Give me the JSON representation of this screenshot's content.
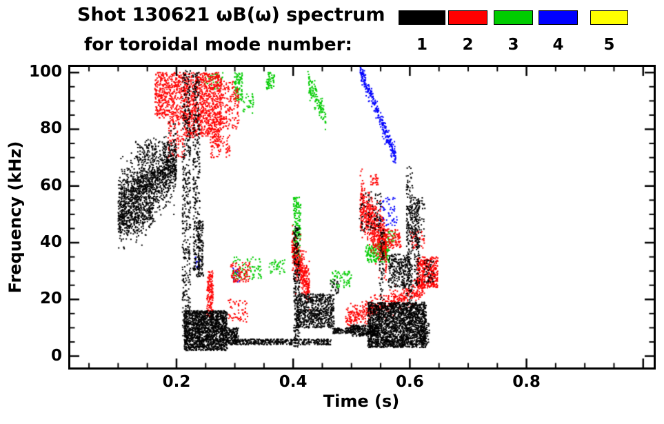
{
  "title": {
    "line1": "Shot 130621 ωB(ω) spectrum",
    "line2": "for toroidal mode number:"
  },
  "legend": {
    "position": "top-right",
    "items": [
      {
        "label": "1",
        "color": "#000000"
      },
      {
        "label": "2",
        "color": "#ff0000"
      },
      {
        "label": "3",
        "color": "#00cc00"
      },
      {
        "label": "4",
        "color": "#0000ff"
      },
      {
        "label": "5",
        "color": "#ffff00"
      }
    ]
  },
  "chart_data": {
    "type": "scatter",
    "title": "Shot 130621 ωB(ω) spectrum for toroidal mode number",
    "xlabel": "Time (s)",
    "ylabel": "Frequency (kHz)",
    "xlim": [
      0.0,
      1.0
    ],
    "ylim": [
      0,
      100
    ],
    "x_tick_values": [
      0.2,
      0.4,
      0.6,
      0.8
    ],
    "x_tick_labels": [
      "0.2",
      "0.4",
      "0.6",
      "0.8"
    ],
    "y_tick_values": [
      0,
      20,
      40,
      60,
      80,
      100
    ],
    "y_tick_labels": [
      "0",
      "20",
      "40",
      "60",
      "80",
      "100"
    ],
    "grid": false,
    "legend_position": "top-right",
    "series": [
      {
        "name": "n=1",
        "color": "#000000",
        "clusters": [
          {
            "k": "band",
            "t": [
              0.1,
              0.2
            ],
            "f": [
              52,
              69
            ],
            "s": 5.5,
            "n": 1500
          },
          {
            "k": "band",
            "t": [
              0.1,
              0.16
            ],
            "f": [
              45,
              50
            ],
            "s": 2.5,
            "n": 220
          },
          {
            "k": "blob",
            "t": [
              0.13,
              0.165
            ],
            "f": [
              69,
              76
            ],
            "n": 70
          },
          {
            "k": "v",
            "t": [
              0.21,
              0.224
            ],
            "f": [
              4,
              101
            ],
            "n": 420
          },
          {
            "k": "v",
            "t": [
              0.228,
              0.24
            ],
            "f": [
              28,
              100
            ],
            "n": 300
          },
          {
            "k": "v",
            "t": [
              0.236,
              0.246
            ],
            "f": [
              28,
              48
            ],
            "n": 120
          },
          {
            "k": "blob",
            "t": [
              0.213,
              0.287
            ],
            "f": [
              2,
              16
            ],
            "n": 1500
          },
          {
            "k": "blob",
            "t": [
              0.285,
              0.307
            ],
            "f": [
              4,
              10
            ],
            "n": 160
          },
          {
            "k": "blob",
            "t": [
              0.3,
              0.465
            ],
            "f": [
              4,
              6
            ],
            "n": 380
          },
          {
            "k": "blob",
            "t": [
              0.405,
              0.47
            ],
            "f": [
              10,
              22
            ],
            "n": 650
          },
          {
            "k": "v",
            "t": [
              0.401,
              0.411
            ],
            "f": [
              3,
              46
            ],
            "n": 220
          },
          {
            "k": "blob",
            "t": [
              0.528,
              0.628
            ],
            "f": [
              3,
              19
            ],
            "n": 2000
          },
          {
            "k": "blob",
            "t": [
              0.498,
              0.545
            ],
            "f": [
              7,
              11
            ],
            "n": 260
          },
          {
            "k": "blob",
            "t": [
              0.468,
              0.5
            ],
            "f": [
              8,
              10
            ],
            "n": 90
          },
          {
            "k": "v",
            "t": [
              0.594,
              0.605
            ],
            "f": [
              8,
              67
            ],
            "n": 220
          },
          {
            "k": "v",
            "t": [
              0.608,
              0.617
            ],
            "f": [
              25,
              55
            ],
            "n": 130
          },
          {
            "k": "v",
            "t": [
              0.548,
              0.556
            ],
            "f": [
              20,
              46
            ],
            "n": 70
          },
          {
            "k": "blob",
            "t": [
              0.563,
              0.602
            ],
            "f": [
              24,
              36
            ],
            "n": 260
          },
          {
            "k": "blob",
            "t": [
              0.513,
              0.552
            ],
            "f": [
              44,
              58
            ],
            "n": 90
          },
          {
            "k": "blob",
            "t": [
              0.598,
              0.626
            ],
            "f": [
              42,
              56
            ],
            "n": 85
          },
          {
            "k": "blob",
            "t": [
              0.624,
              0.642
            ],
            "f": [
              26,
              34
            ],
            "n": 45
          },
          {
            "k": "blob",
            "t": [
              0.618,
              0.634
            ],
            "f": [
              4,
              12
            ],
            "n": 70
          },
          {
            "k": "blob",
            "t": [
              0.463,
              0.478
            ],
            "f": [
              22,
              27
            ],
            "n": 25
          }
        ]
      },
      {
        "name": "n=2",
        "color": "#ff0000",
        "clusters": [
          {
            "k": "blob",
            "t": [
              0.163,
              0.215
            ],
            "f": [
              84,
              100
            ],
            "n": 480
          },
          {
            "k": "blob",
            "t": [
              0.213,
              0.277
            ],
            "f": [
              77,
              100
            ],
            "n": 950
          },
          {
            "k": "blob",
            "t": [
              0.275,
              0.307
            ],
            "f": [
              80,
              97
            ],
            "n": 160
          },
          {
            "k": "blob",
            "t": [
              0.258,
              0.292
            ],
            "f": [
              70,
              78
            ],
            "n": 90
          },
          {
            "k": "blob",
            "t": [
              0.185,
              0.215
            ],
            "f": [
              70,
              84
            ],
            "n": 120
          },
          {
            "k": "v",
            "t": [
              0.252,
              0.263
            ],
            "f": [
              14,
              30
            ],
            "n": 150
          },
          {
            "k": "blob",
            "t": [
              0.288,
              0.322
            ],
            "f": [
              12,
              20
            ],
            "n": 60
          },
          {
            "k": "blob",
            "t": [
              0.293,
              0.327
            ],
            "f": [
              26,
              33
            ],
            "n": 90
          },
          {
            "k": "band",
            "t": [
              0.398,
              0.428
            ],
            "f": [
              38,
              24
            ],
            "s": 3.5,
            "n": 380
          },
          {
            "k": "band",
            "t": [
              0.515,
              0.56
            ],
            "f": [
              54,
              38
            ],
            "s": 4.5,
            "n": 600
          },
          {
            "k": "blob",
            "t": [
              0.531,
              0.546
            ],
            "f": [
              60,
              64
            ],
            "n": 28
          },
          {
            "k": "band",
            "t": [
              0.49,
              0.625
            ],
            "f": [
              13,
              24
            ],
            "s": 1.8,
            "n": 480
          },
          {
            "k": "blob",
            "t": [
              0.612,
              0.648
            ],
            "f": [
              24,
              35
            ],
            "n": 380
          },
          {
            "k": "blob",
            "t": [
              0.553,
              0.585
            ],
            "f": [
              38,
              45
            ],
            "n": 110
          },
          {
            "k": "blob",
            "t": [
              0.6,
              0.625
            ],
            "f": [
              38,
              44
            ],
            "n": 40
          }
        ]
      },
      {
        "name": "n=3",
        "color": "#00cc00",
        "clusters": [
          {
            "k": "v",
            "t": [
              0.299,
              0.313
            ],
            "f": [
              90,
              100
            ],
            "n": 90
          },
          {
            "k": "blob",
            "t": [
              0.31,
              0.332
            ],
            "f": [
              85,
              93
            ],
            "n": 35
          },
          {
            "k": "blob",
            "t": [
              0.354,
              0.368
            ],
            "f": [
              94,
              100
            ],
            "n": 55
          },
          {
            "k": "band",
            "t": [
              0.425,
              0.456
            ],
            "f": [
              97,
              84
            ],
            "s": 2,
            "n": 130
          },
          {
            "k": "v",
            "t": [
              0.4,
              0.413
            ],
            "f": [
              33,
              56
            ],
            "n": 170
          },
          {
            "k": "blob",
            "t": [
              0.294,
              0.346
            ],
            "f": [
              27,
              35
            ],
            "n": 85
          },
          {
            "k": "blob",
            "t": [
              0.358,
              0.386
            ],
            "f": [
              29,
              34
            ],
            "n": 40
          },
          {
            "k": "blob",
            "t": [
              0.464,
              0.5
            ],
            "f": [
              24,
              30
            ],
            "n": 70
          },
          {
            "k": "blob",
            "t": [
              0.524,
              0.566
            ],
            "f": [
              33,
              40
            ],
            "n": 190
          },
          {
            "k": "blob",
            "t": [
              0.554,
              0.576
            ],
            "f": [
              40,
              44
            ],
            "n": 40
          },
          {
            "k": "blob",
            "t": [
              0.247,
              0.28
            ],
            "f": [
              94,
              100
            ],
            "n": 45
          }
        ]
      },
      {
        "name": "n=4",
        "color": "#0000ff",
        "clusters": [
          {
            "k": "band",
            "t": [
              0.515,
              0.576
            ],
            "f": [
              101,
              70
            ],
            "s": 1.6,
            "n": 300
          },
          {
            "k": "blob",
            "t": [
              0.548,
              0.578
            ],
            "f": [
              46,
              56
            ],
            "n": 55
          },
          {
            "k": "blob",
            "t": [
              0.296,
              0.308
            ],
            "f": [
              26,
              31
            ],
            "n": 22
          },
          {
            "k": "blob",
            "t": [
              0.232,
              0.241
            ],
            "f": [
              31,
              35
            ],
            "n": 12
          }
        ]
      },
      {
        "name": "n=5",
        "color": "#ffff00",
        "clusters": []
      }
    ]
  }
}
